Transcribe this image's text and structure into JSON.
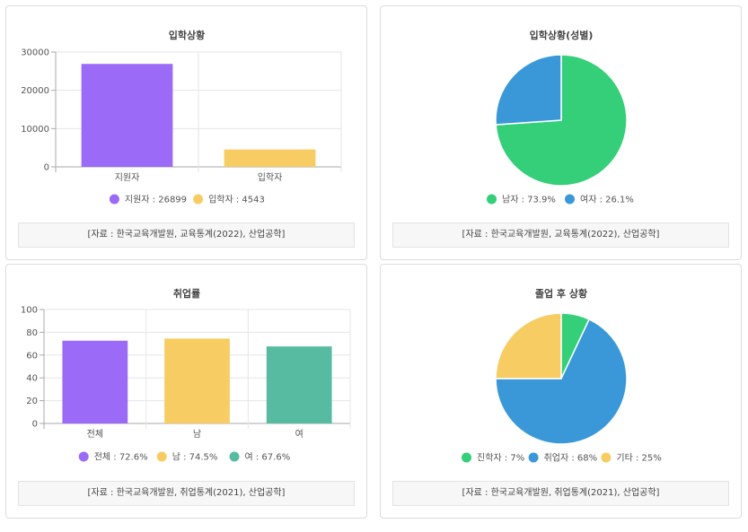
{
  "chart_data": [
    {
      "type": "bar",
      "title": "입학상황",
      "categories": [
        "지원자",
        "입학자"
      ],
      "values": [
        26899,
        4543
      ],
      "colors": [
        "#9b6bf7",
        "#f7cd63"
      ],
      "ylim": [
        0,
        30000
      ],
      "yticks": [
        0,
        10000,
        20000,
        30000
      ],
      "legend": [
        "지원자 : 26899",
        "입학자 : 4543"
      ],
      "source": "[자료 : 한국교육개발원, 교육통계(2022), 산업공학]"
    },
    {
      "type": "pie",
      "title": "입학상황(성별)",
      "labels": [
        "남자",
        "여자"
      ],
      "values": [
        73.9,
        26.1
      ],
      "colors": [
        "#34cf78",
        "#3b98d8"
      ],
      "legend": [
        "남자 : 73.9%",
        "여자 : 26.1%"
      ],
      "source": "[자료 : 한국교육개발원, 교육통계(2022), 산업공학]"
    },
    {
      "type": "bar",
      "title": "취업률",
      "categories": [
        "전체",
        "남",
        "여"
      ],
      "values": [
        72.6,
        74.5,
        67.6
      ],
      "colors": [
        "#9b6bf7",
        "#f7cd63",
        "#57bba2"
      ],
      "ylim": [
        0,
        100
      ],
      "yticks": [
        0,
        20,
        40,
        60,
        80,
        100
      ],
      "legend": [
        "전체 : 72.6%",
        "남 : 74.5%",
        "여 : 67.6%"
      ],
      "source": "[자료 : 한국교육개발원, 취업통계(2021), 산업공학]"
    },
    {
      "type": "pie",
      "title": "졸업 후 상황",
      "labels": [
        "진학자",
        "취업자",
        "기타"
      ],
      "values": [
        7,
        68,
        25
      ],
      "colors": [
        "#34cf78",
        "#3b98d8",
        "#f7cd63"
      ],
      "legend": [
        "진학자 : 7%",
        "취업자 : 68%",
        "기타 : 25%"
      ],
      "source": "[자료 : 한국교육개발원, 취업통계(2021), 산업공학]"
    }
  ]
}
